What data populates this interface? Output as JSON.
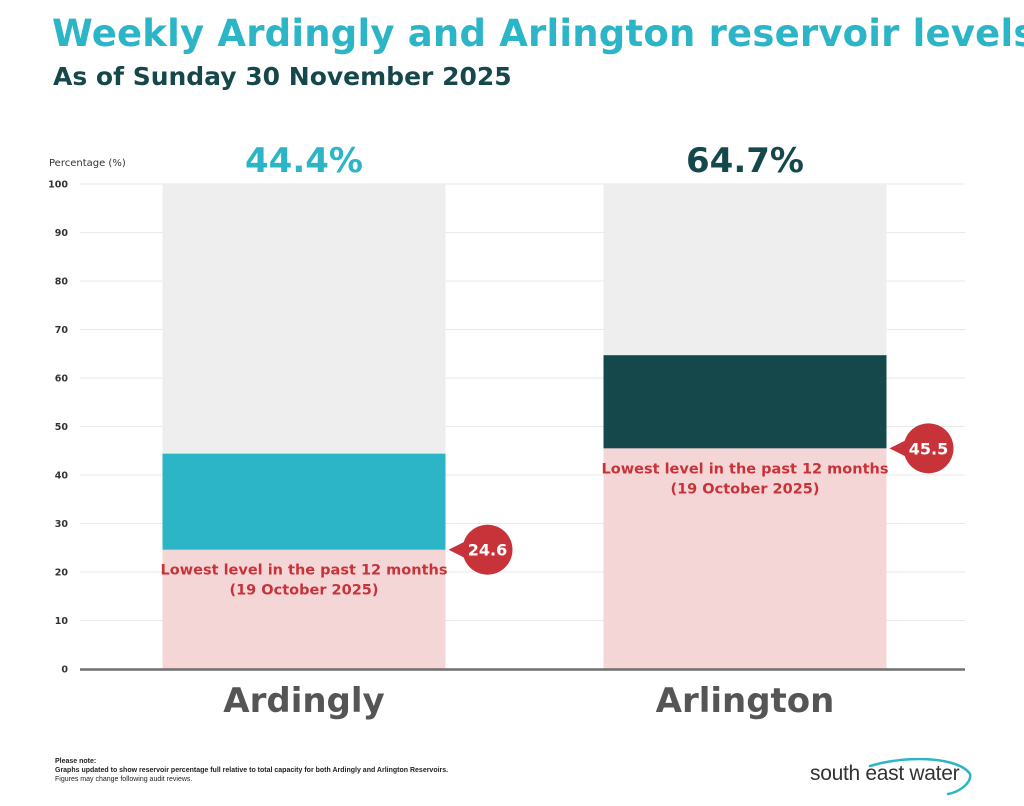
{
  "title": "Weekly Ardingly and Arlington reservoir levels",
  "subtitle": "As of Sunday 30 November 2025",
  "colors": {
    "title": "#2bb5c6",
    "subtitle": "#16484b",
    "background_bar": "#eeeeee",
    "lowest_fill": "#f5d6d6",
    "callout": "#c8333a",
    "callout_text": "#c8333a",
    "axis_text": "#333333",
    "category_label": "#555555"
  },
  "chart_data": {
    "type": "bar",
    "ylabel": "Percentage (%)",
    "ylim": [
      0,
      100
    ],
    "yticks": [
      0,
      10,
      20,
      30,
      40,
      50,
      60,
      70,
      80,
      90,
      100
    ],
    "grid": true,
    "categories": [
      "Ardingly",
      "Arlington"
    ],
    "series": [
      {
        "values": [
          44.4,
          64.7
        ],
        "value_labels": [
          "44.4%",
          "64.7%"
        ],
        "colors": [
          "#2bb5c6",
          "#15484b"
        ],
        "label_colors": [
          "#2bb5c6",
          "#15484b"
        ]
      }
    ],
    "lowest_levels": [
      {
        "value": 24.6,
        "label": "24.6",
        "text_line1": "Lowest level in the past 12 months",
        "text_line2": "(19 October 2025)"
      },
      {
        "value": 45.5,
        "label": "45.5",
        "text_line1": "Lowest level in the past 12 months",
        "text_line2": "(19 October 2025)"
      }
    ]
  },
  "footnote": {
    "heading": "Please note:",
    "line1": "Graphs updated to show reservoir percentage full relative to total capacity for both Ardingly and Arlington Reservoirs.",
    "line2": "Figures may change following audit reviews."
  },
  "logo": {
    "text": "south east water"
  }
}
